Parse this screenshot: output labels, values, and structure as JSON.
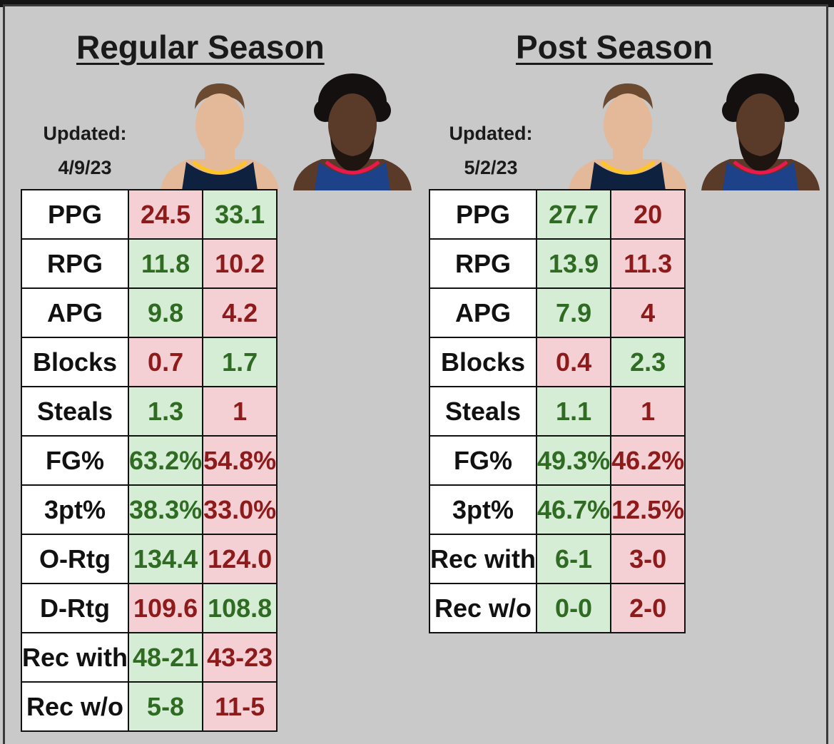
{
  "sections": [
    {
      "title": "Regular Season",
      "updated_label": "Updated:",
      "updated_date": "4/9/23",
      "rows": [
        {
          "label": "PPG",
          "p1": "24.5",
          "p2": "33.1",
          "p1_status": "bad",
          "p2_status": "good"
        },
        {
          "label": "RPG",
          "p1": "11.8",
          "p2": "10.2",
          "p1_status": "good",
          "p2_status": "bad"
        },
        {
          "label": "APG",
          "p1": "9.8",
          "p2": "4.2",
          "p1_status": "good",
          "p2_status": "bad"
        },
        {
          "label": "Blocks",
          "p1": "0.7",
          "p2": "1.7",
          "p1_status": "bad",
          "p2_status": "good"
        },
        {
          "label": "Steals",
          "p1": "1.3",
          "p2": "1",
          "p1_status": "good",
          "p2_status": "bad"
        },
        {
          "label": "FG%",
          "p1": "63.2%",
          "p2": "54.8%",
          "p1_status": "good",
          "p2_status": "bad"
        },
        {
          "label": "3pt%",
          "p1": "38.3%",
          "p2": "33.0%",
          "p1_status": "good",
          "p2_status": "bad"
        },
        {
          "label": "O-Rtg",
          "p1": "134.4",
          "p2": "124.0",
          "p1_status": "good",
          "p2_status": "bad"
        },
        {
          "label": "D-Rtg",
          "p1": "109.6",
          "p2": "108.8",
          "p1_status": "bad",
          "p2_status": "good"
        },
        {
          "label": "Rec with",
          "p1": "48-21",
          "p2": "43-23",
          "p1_status": "good",
          "p2_status": "bad"
        },
        {
          "label": "Rec w/o",
          "p1": "5-8",
          "p2": "11-5",
          "p1_status": "good",
          "p2_status": "bad"
        }
      ]
    },
    {
      "title": "Post Season",
      "updated_label": "Updated:",
      "updated_date": "5/2/23",
      "rows": [
        {
          "label": "PPG",
          "p1": "27.7",
          "p2": "20",
          "p1_status": "good",
          "p2_status": "bad"
        },
        {
          "label": "RPG",
          "p1": "13.9",
          "p2": "11.3",
          "p1_status": "good",
          "p2_status": "bad"
        },
        {
          "label": "APG",
          "p1": "7.9",
          "p2": "4",
          "p1_status": "good",
          "p2_status": "bad"
        },
        {
          "label": "Blocks",
          "p1": "0.4",
          "p2": "2.3",
          "p1_status": "bad",
          "p2_status": "good"
        },
        {
          "label": "Steals",
          "p1": "1.1",
          "p2": "1",
          "p1_status": "good",
          "p2_status": "bad"
        },
        {
          "label": "FG%",
          "p1": "49.3%",
          "p2": "46.2%",
          "p1_status": "good",
          "p2_status": "bad"
        },
        {
          "label": "3pt%",
          "p1": "46.7%",
          "p2": "12.5%",
          "p1_status": "good",
          "p2_status": "bad"
        },
        {
          "label": "Rec with",
          "p1": "6-1",
          "p2": "3-0",
          "p1_status": "good",
          "p2_status": "bad"
        },
        {
          "label": "Rec w/o",
          "p1": "0-0",
          "p2": "2-0",
          "p1_status": "good",
          "p2_status": "bad"
        }
      ]
    }
  ],
  "colors": {
    "background": "#c9c9c9",
    "good_fill": "#d5edd5",
    "good_text": "#2f6b22",
    "bad_fill": "#f4cfd3",
    "bad_text": "#8e1b1b",
    "jersey_player1": "#0e2240",
    "jersey_player2": "#1d428a"
  }
}
